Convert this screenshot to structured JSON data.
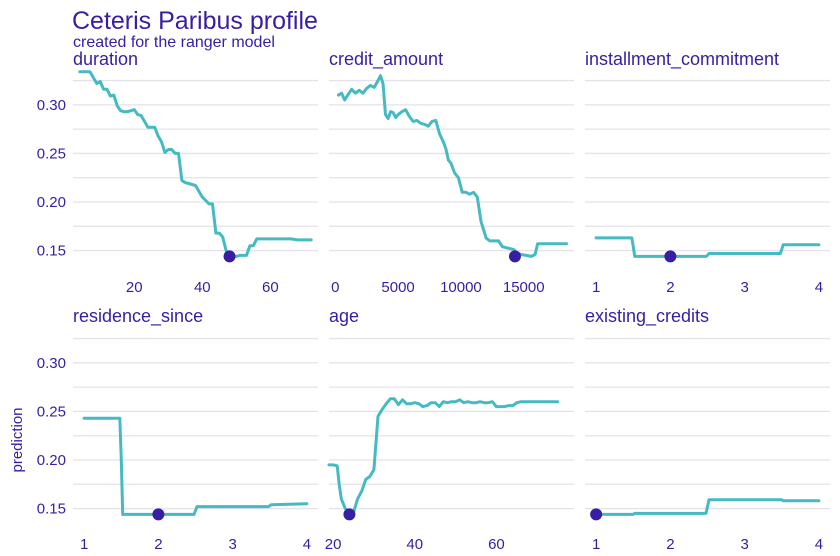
{
  "title": "Ceteris Paribus profile",
  "subtitle": "created for the ranger model",
  "colors": {
    "text": "#371ea3",
    "line": "#46bac2",
    "point": "#371ea3",
    "grid": "#e3e3e9"
  },
  "chart_data": {
    "type": "line",
    "ylabel": "prediction",
    "ylim": [
      0.13,
      0.34
    ],
    "yticks": [
      0.15,
      0.2,
      0.25,
      0.3
    ],
    "panels": [
      {
        "name": "duration",
        "xlim": [
          2,
          74
        ],
        "xticks": [
          20,
          40,
          60
        ],
        "series": [
          {
            "x": [
              4,
              7,
              8,
              9,
              10,
              11,
              12,
              13,
              14,
              15,
              16,
              17,
              18,
              20,
              21,
              22,
              24,
              25,
              26,
              27,
              28,
              29,
              30,
              31,
              32,
              33,
              34,
              35,
              36,
              38,
              39,
              40,
              42,
              43,
              44,
              45,
              46,
              47,
              48,
              50,
              51,
              53,
              54,
              55,
              56,
              60,
              66,
              68,
              72
            ],
            "values": [
              0.334,
              0.334,
              0.328,
              0.322,
              0.324,
              0.316,
              0.316,
              0.309,
              0.31,
              0.299,
              0.294,
              0.293,
              0.293,
              0.295,
              0.29,
              0.289,
              0.277,
              0.277,
              0.277,
              0.268,
              0.262,
              0.251,
              0.254,
              0.254,
              0.25,
              0.25,
              0.222,
              0.22,
              0.219,
              0.217,
              0.211,
              0.205,
              0.198,
              0.198,
              0.168,
              0.168,
              0.164,
              0.15,
              0.144,
              0.144,
              0.145,
              0.145,
              0.155,
              0.155,
              0.162,
              0.162,
              0.162,
              0.161,
              0.161
            ]
          }
        ],
        "point": {
          "x": 48,
          "y": 0.144
        }
      },
      {
        "name": "credit_amount",
        "xlim": [
          -500,
          19000
        ],
        "xticks": [
          0,
          5000,
          10000,
          15000
        ],
        "xticklabels": [
          "0",
          "5000",
          "10000",
          "15000"
        ],
        "series": [
          {
            "x": [
              250,
              500,
              750,
              1000,
              1300,
              1600,
              1900,
              2200,
              2500,
              2800,
              3100,
              3400,
              3600,
              3800,
              4000,
              4200,
              4400,
              4600,
              4800,
              5000,
              5300,
              5600,
              5900,
              6200,
              6500,
              6800,
              7100,
              7400,
              7700,
              8000,
              8300,
              8600,
              8800,
              9000,
              9200,
              9500,
              9800,
              10100,
              10400,
              10700,
              11000,
              11300,
              11600,
              12000,
              12300,
              12600,
              13000,
              13300,
              13600,
              13900,
              14200,
              14500,
              14800,
              15200,
              15600,
              15900,
              16100,
              18400
            ],
            "values": [
              0.31,
              0.312,
              0.305,
              0.31,
              0.316,
              0.312,
              0.315,
              0.312,
              0.317,
              0.32,
              0.318,
              0.325,
              0.33,
              0.322,
              0.29,
              0.286,
              0.293,
              0.292,
              0.287,
              0.29,
              0.293,
              0.295,
              0.288,
              0.283,
              0.284,
              0.281,
              0.28,
              0.278,
              0.283,
              0.284,
              0.27,
              0.262,
              0.255,
              0.243,
              0.24,
              0.23,
              0.225,
              0.21,
              0.21,
              0.208,
              0.21,
              0.205,
              0.18,
              0.163,
              0.16,
              0.16,
              0.16,
              0.154,
              0.153,
              0.152,
              0.151,
              0.147,
              0.146,
              0.145,
              0.144,
              0.146,
              0.157,
              0.157
            ]
          }
        ],
        "point": {
          "x": 14300,
          "y": 0.144
        }
      },
      {
        "name": "installment_commitment",
        "xlim": [
          0.85,
          4.15
        ],
        "xticks": [
          1,
          2,
          3,
          4
        ],
        "series": [
          {
            "x": [
              1,
              1.48,
              1.5,
              1.52,
              2,
              2.48,
              2.5,
              2.52,
              3,
              3.48,
              3.5,
              3.52,
              4
            ],
            "values": [
              0.163,
              0.163,
              0.154,
              0.144,
              0.144,
              0.144,
              0.145,
              0.147,
              0.147,
              0.147,
              0.151,
              0.156,
              0.156
            ]
          }
        ],
        "point": {
          "x": 2,
          "y": 0.144
        }
      },
      {
        "name": "residence_since",
        "xlim": [
          0.85,
          4.15
        ],
        "xticks": [
          1,
          2,
          3,
          4
        ],
        "series": [
          {
            "x": [
              1,
              1.48,
              1.5,
              1.52,
              2,
              2.48,
              2.5,
              2.52,
              3,
              3.48,
              3.5,
              3.52,
              4
            ],
            "values": [
              0.243,
              0.243,
              0.2,
              0.144,
              0.144,
              0.144,
              0.148,
              0.152,
              0.152,
              0.152,
              0.153,
              0.154,
              0.155
            ]
          }
        ],
        "point": {
          "x": 2,
          "y": 0.144
        }
      },
      {
        "name": "age",
        "xlim": [
          19,
          79
        ],
        "xticks": [
          20,
          40,
          60
        ],
        "series": [
          {
            "x": [
              19,
              20,
              21,
              21.5,
              22,
              23,
              24,
              25,
              26,
              27,
              28,
              29,
              30,
              31,
              32,
              33,
              34,
              35,
              36,
              37,
              38,
              39,
              40,
              41,
              42,
              43,
              44,
              45,
              46,
              47,
              48,
              49,
              50,
              51,
              52,
              53,
              54,
              55,
              56,
              57,
              58,
              59,
              60,
              61,
              62,
              63,
              64,
              65,
              66,
              67,
              75
            ],
            "values": [
              0.195,
              0.195,
              0.194,
              0.175,
              0.16,
              0.15,
              0.146,
              0.146,
              0.16,
              0.168,
              0.18,
              0.183,
              0.19,
              0.245,
              0.252,
              0.258,
              0.263,
              0.263,
              0.257,
              0.262,
              0.258,
              0.258,
              0.259,
              0.258,
              0.255,
              0.256,
              0.259,
              0.259,
              0.255,
              0.26,
              0.259,
              0.26,
              0.26,
              0.262,
              0.259,
              0.26,
              0.259,
              0.259,
              0.26,
              0.259,
              0.259,
              0.26,
              0.255,
              0.255,
              0.255,
              0.256,
              0.256,
              0.259,
              0.26,
              0.26,
              0.26
            ]
          }
        ],
        "point": {
          "x": 24,
          "y": 0.144
        }
      },
      {
        "name": "existing_credits",
        "xlim": [
          0.85,
          4.15
        ],
        "xticks": [
          1,
          2,
          3,
          4
        ],
        "series": [
          {
            "x": [
              1,
              1.48,
              1.5,
              1.52,
              2,
              2.48,
              2.5,
              2.52,
              3,
              3.48,
              3.5,
              3.52,
              4
            ],
            "values": [
              0.144,
              0.144,
              0.144,
              0.145,
              0.145,
              0.145,
              0.152,
              0.159,
              0.159,
              0.159,
              0.159,
              0.158,
              0.158
            ]
          }
        ],
        "point": {
          "x": 1,
          "y": 0.144
        }
      }
    ]
  }
}
